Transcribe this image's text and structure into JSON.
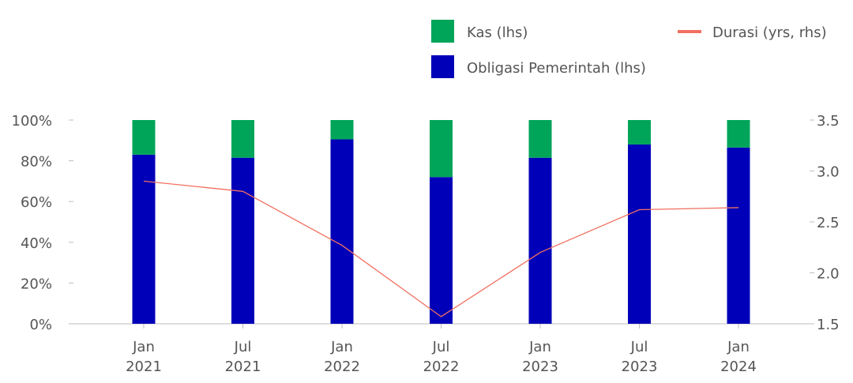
{
  "chart_data": {
    "type": "bar+line",
    "categories": [
      {
        "line1": "Jan",
        "line2": "2021"
      },
      {
        "line1": "Jul",
        "line2": "2021"
      },
      {
        "line1": "Jan",
        "line2": "2022"
      },
      {
        "line1": "Jul",
        "line2": "2022"
      },
      {
        "line1": "Jan",
        "line2": "2023"
      },
      {
        "line1": "Jul",
        "line2": "2023"
      },
      {
        "line1": "Jan",
        "line2": "2024"
      }
    ],
    "series": [
      {
        "name": "Obligasi Pemerintah (lhs)",
        "kind": "stacked-bar",
        "axis": "left",
        "color": "#0000b8",
        "values": [
          83,
          81.5,
          90.5,
          72,
          81.5,
          88,
          86.5
        ]
      },
      {
        "name": "Kas (lhs)",
        "kind": "stacked-bar",
        "axis": "left",
        "color": "#00a55a",
        "values": [
          17,
          18.5,
          9.5,
          28,
          18.5,
          12,
          13.5
        ]
      },
      {
        "name": "Durasi (yrs, rhs)",
        "kind": "line",
        "axis": "right",
        "color": "#f07060",
        "values": [
          2.9,
          2.8,
          2.27,
          1.57,
          2.2,
          2.62,
          2.64
        ]
      }
    ],
    "y_left": {
      "min": 0,
      "max": 100,
      "ticks": [
        {
          "v": 0,
          "label": "0%"
        },
        {
          "v": 20,
          "label": "20%"
        },
        {
          "v": 40,
          "label": "40%"
        },
        {
          "v": 60,
          "label": "60%"
        },
        {
          "v": 80,
          "label": "80%"
        },
        {
          "v": 100,
          "label": "100%"
        }
      ]
    },
    "y_right": {
      "min": 1.5,
      "max": 3.5,
      "ticks": [
        {
          "v": 1.5,
          "label": "1.5"
        },
        {
          "v": 2.0,
          "label": "2.0"
        },
        {
          "v": 2.5,
          "label": "2.5"
        },
        {
          "v": 3.0,
          "label": "3.0"
        },
        {
          "v": 3.5,
          "label": "3.5"
        }
      ]
    },
    "legend": {
      "placement": "top-right",
      "items": [
        {
          "label": "Kas (lhs)",
          "color": "#00a55a",
          "shape": "square"
        },
        {
          "label": "Obligasi Pemerintah (lhs)",
          "color": "#0000b8",
          "shape": "square"
        },
        {
          "label": "Durasi (yrs, rhs)",
          "color": "#f07060",
          "shape": "line"
        }
      ]
    },
    "grid": false
  }
}
